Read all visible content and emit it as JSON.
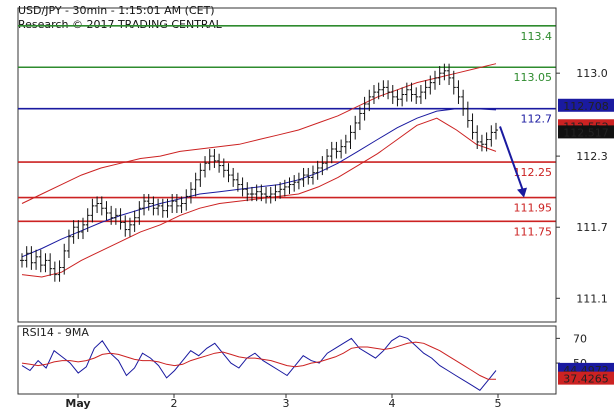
{
  "header": {
    "line1": "USD/JPY - 30min - 1:15:01 AM (CET)",
    "line2": "Research © 2017 TRADING CENTRAL"
  },
  "chart_data": [
    {
      "type": "candlestick",
      "instrument": "USD/JPY",
      "timeframe": "30min",
      "ylim": [
        110.9,
        113.55
      ],
      "y_ticks": [
        111.1,
        111.7,
        112.3,
        113.0
      ],
      "y_tick_labels": [
        "111.1",
        "111.7",
        "112.3",
        "113.0"
      ],
      "x_tick_labels": [
        "May",
        "2",
        "3",
        "4",
        "5"
      ],
      "grid": false,
      "levels": [
        {
          "label": "113.4",
          "value": 113.4,
          "color": "#2e8b2e"
        },
        {
          "label": "113.05",
          "value": 113.05,
          "color": "#2e8b2e"
        },
        {
          "label": "112.7",
          "value": 112.7,
          "color": "#1a1aa0"
        },
        {
          "label": "112.25",
          "value": 112.25,
          "color": "#cc2222"
        },
        {
          "label": "111.95",
          "value": 111.95,
          "color": "#cc2222"
        },
        {
          "label": "111.75",
          "value": 111.75,
          "color": "#cc2222"
        }
      ],
      "price_badges": [
        {
          "label": "112.708",
          "value": 112.708,
          "bg": "#1a1aa0"
        },
        {
          "label": "112.552",
          "value": 112.552,
          "bg": "#cc2222"
        },
        {
          "label": "112.517",
          "value": 112.517,
          "bg": "#111111"
        }
      ],
      "close_series": [
        111.42,
        111.48,
        111.4,
        111.45,
        111.38,
        111.42,
        111.35,
        111.3,
        111.36,
        111.5,
        111.62,
        111.7,
        111.66,
        111.72,
        111.8,
        111.88,
        111.9,
        111.86,
        111.82,
        111.78,
        111.8,
        111.74,
        111.68,
        111.72,
        111.78,
        111.86,
        111.92,
        111.9,
        111.86,
        111.88,
        111.84,
        111.88,
        111.92,
        111.88,
        111.9,
        111.96,
        112.02,
        112.1,
        112.18,
        112.24,
        112.3,
        112.26,
        112.22,
        112.18,
        112.14,
        112.1,
        112.06,
        112.02,
        111.98,
        111.98,
        112.0,
        111.98,
        111.96,
        111.98,
        112.0,
        112.02,
        112.04,
        112.06,
        112.08,
        112.1,
        112.14,
        112.12,
        112.16,
        112.2,
        112.24,
        112.3,
        112.36,
        112.34,
        112.38,
        112.42,
        112.5,
        112.58,
        112.66,
        112.74,
        112.8,
        112.84,
        112.86,
        112.88,
        112.84,
        112.8,
        112.78,
        112.82,
        112.86,
        112.82,
        112.8,
        112.84,
        112.88,
        112.92,
        112.96,
        113.0,
        113.02,
        112.96,
        112.88,
        112.8,
        112.7,
        112.6,
        112.5,
        112.42,
        112.4,
        112.44,
        112.5,
        112.52
      ],
      "bollinger_upper": [
        111.9,
        111.98,
        112.06,
        112.14,
        112.2,
        112.24,
        112.28,
        112.3,
        112.34,
        112.36,
        112.38,
        112.4,
        112.44,
        112.48,
        112.52,
        112.58,
        112.64,
        112.72,
        112.8,
        112.86,
        112.92,
        112.96,
        113.0,
        113.04,
        113.08
      ],
      "bollinger_lower": [
        111.3,
        111.28,
        111.32,
        111.42,
        111.5,
        111.58,
        111.66,
        111.72,
        111.8,
        111.86,
        111.9,
        111.92,
        111.94,
        111.96,
        111.98,
        112.04,
        112.12,
        112.22,
        112.32,
        112.44,
        112.56,
        112.62,
        112.52,
        112.4,
        112.34
      ],
      "moving_average": [
        111.45,
        111.52,
        111.6,
        111.67,
        111.74,
        111.8,
        111.85,
        111.9,
        111.94,
        111.98,
        112.0,
        112.02,
        112.04,
        112.06,
        112.1,
        112.16,
        112.24,
        112.34,
        112.44,
        112.54,
        112.62,
        112.68,
        112.7,
        112.7,
        112.69
      ],
      "projection": {
        "from": 112.55,
        "to": 111.95,
        "color": "#1a1aa0"
      }
    },
    {
      "type": "line",
      "title": "RSI14 - 9MA",
      "ylim": [
        25,
        80
      ],
      "y_ticks": [
        50,
        70
      ],
      "y_tick_labels": [
        "50",
        "70"
      ],
      "series": [
        {
          "name": "RSI14",
          "color": "#1a1aa0",
          "values": [
            48,
            44,
            52,
            46,
            60,
            55,
            50,
            42,
            47,
            62,
            68,
            58,
            52,
            40,
            46,
            58,
            54,
            48,
            38,
            44,
            52,
            60,
            56,
            62,
            66,
            58,
            50,
            46,
            54,
            58,
            52,
            48,
            44,
            40,
            48,
            56,
            52,
            50,
            58,
            62,
            66,
            70,
            62,
            58,
            54,
            60,
            68,
            72,
            70,
            64,
            58,
            54,
            48,
            44,
            40,
            36,
            32,
            28,
            36,
            44
          ]
        },
        {
          "name": "9MA",
          "color": "#cc2222",
          "values": [
            50,
            49,
            48,
            49,
            51,
            52,
            52,
            51,
            52,
            54,
            57,
            58,
            57,
            55,
            53,
            52,
            52,
            51,
            49,
            48,
            49,
            52,
            54,
            56,
            58,
            59,
            57,
            55,
            54,
            54,
            53,
            52,
            50,
            48,
            47,
            48,
            50,
            51,
            53,
            55,
            58,
            62,
            63,
            63,
            62,
            61,
            62,
            64,
            66,
            67,
            66,
            63,
            60,
            56,
            52,
            48,
            44,
            40,
            37,
            37
          ]
        }
      ],
      "badges": [
        {
          "label": "44.4972",
          "value": 44.4972,
          "bg": "#1a1aa0"
        },
        {
          "label": "37.4265",
          "value": 37.4265,
          "bg": "#cc2222"
        }
      ]
    }
  ]
}
